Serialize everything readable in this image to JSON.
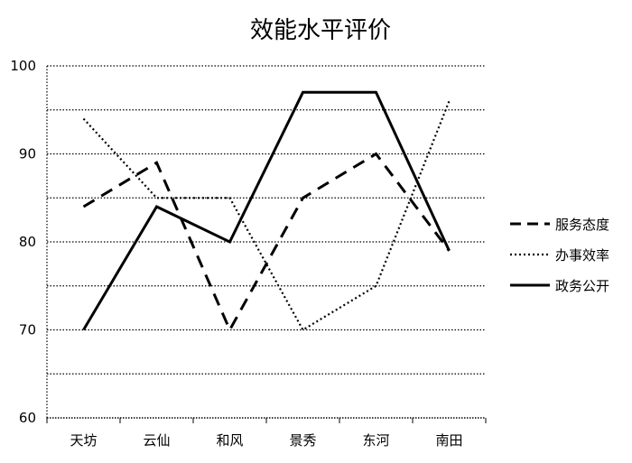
{
  "chart_data": {
    "type": "line",
    "title": "效能水平评价",
    "xlabel": "",
    "ylabel": "",
    "categories": [
      "天坊",
      "云仙",
      "和风",
      "景秀",
      "东河",
      "南田"
    ],
    "ylim": [
      60,
      100
    ],
    "yticks": [
      60,
      70,
      80,
      90,
      100
    ],
    "grid": true,
    "legend_position": "right",
    "series": [
      {
        "name": "服务态度",
        "style": "dashed",
        "color": "#000000",
        "values": [
          84,
          89,
          70,
          85,
          90,
          79
        ]
      },
      {
        "name": "办事效率",
        "style": "dotted",
        "color": "#000000",
        "values": [
          94,
          85,
          85,
          70,
          75,
          96
        ]
      },
      {
        "name": "政务公开",
        "style": "solid",
        "color": "#000000",
        "values": [
          70,
          84,
          80,
          97,
          97,
          79
        ]
      }
    ]
  }
}
